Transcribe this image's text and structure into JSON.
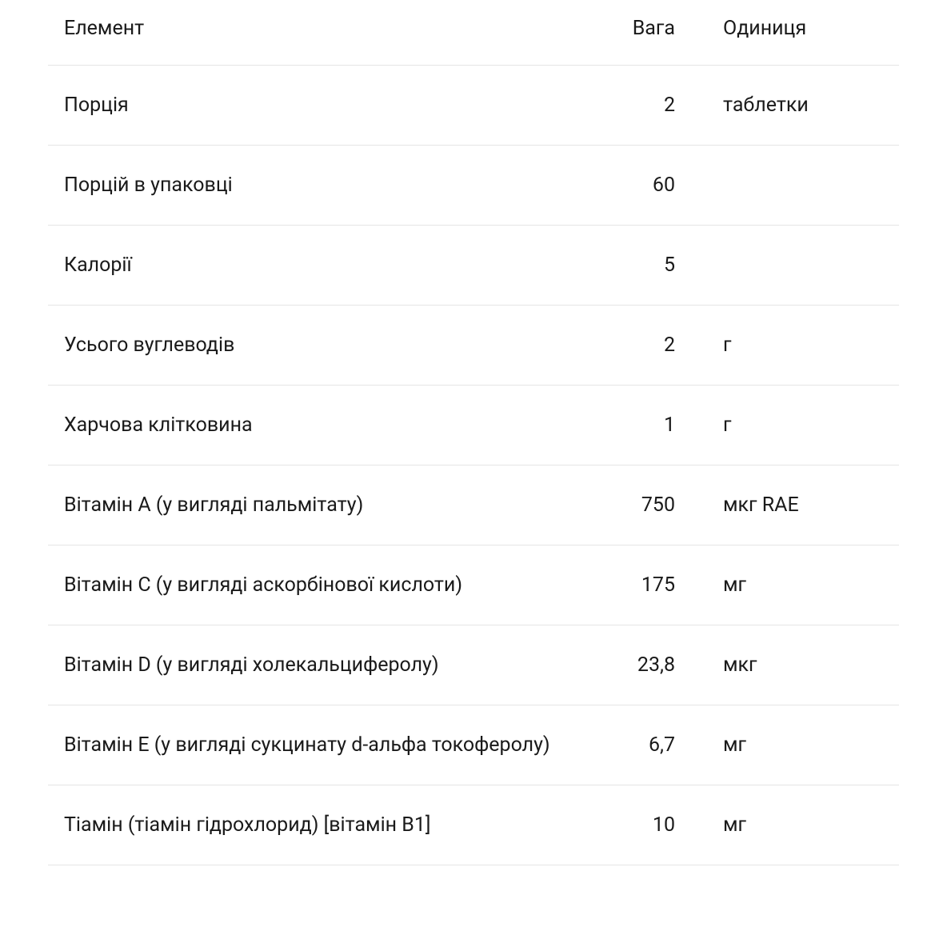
{
  "table": {
    "headers": {
      "element": "Елемент",
      "weight": "Вага",
      "unit": "Одиниця"
    },
    "rows": [
      {
        "element": "Порція",
        "weight": "2",
        "unit": "таблетки"
      },
      {
        "element": "Порцій в упаковці",
        "weight": "60",
        "unit": ""
      },
      {
        "element": "Калорії",
        "weight": "5",
        "unit": ""
      },
      {
        "element": "Усього вуглеводів",
        "weight": "2",
        "unit": "г"
      },
      {
        "element": "Харчова клітковина",
        "weight": "1",
        "unit": "г"
      },
      {
        "element": "Вітамін A (у вигляді пальмітату)",
        "weight": "750",
        "unit": "мкг RAE"
      },
      {
        "element": "Вітамін С (у вигляді аскорбінової кислоти)",
        "weight": "175",
        "unit": "мг"
      },
      {
        "element": "Вітамін D (у вигляді холекальциферолу)",
        "weight": "23,8",
        "unit": "мкг"
      },
      {
        "element": "Вітамін E (у вигляді сукцинату d-альфа токоферолу)",
        "weight": "6,7",
        "unit": "мг"
      },
      {
        "element": "Тіамін (тіамін гідрохлорид) [вітамін B1]",
        "weight": "10",
        "unit": "мг"
      }
    ],
    "styling": {
      "font_size": 25,
      "text_color": "#1a1a1a",
      "background_color": "#ffffff",
      "border_color": "#e5e5e5",
      "row_padding_vertical": 32,
      "row_padding_horizontal": 20,
      "container_padding_horizontal": 60,
      "col_weight_width": 140,
      "col_unit_width": 200,
      "line_height": 1.4
    }
  }
}
